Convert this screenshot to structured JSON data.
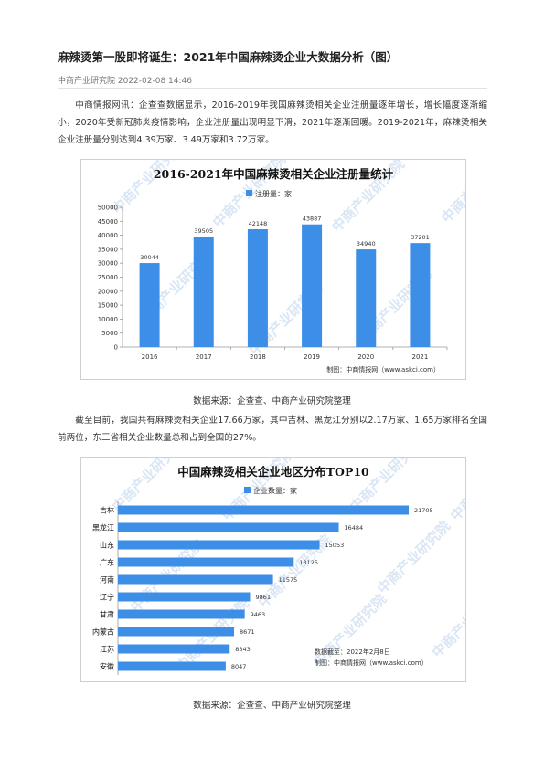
{
  "article": {
    "title": "麻辣烫第一股即将诞生：2021年中国麻辣烫企业大数据分析（图）",
    "source_line": "中商产业研究院 2022-02-08 14:46",
    "paragraph1": "中商情报网讯：企查查数据显示，2016-2019年我国麻辣烫相关企业注册量逐年增长，增长幅度逐渐缩小，2020年受新冠肺炎疫情影响，企业注册量出现明显下滑，2021年逐渐回暖。2019-2021年，麻辣烫相关企业注册量分别达到4.39万家、3.49万家和3.72万家。",
    "caption1": "数据来源：企查查、中商产业研究院整理",
    "paragraph2": "截至目前，我国共有麻辣烫相关企业17.66万家，其中吉林、黑龙江分别以2.17万家、1.65万家排名全国前两位，东三省相关企业数量总和占到全国的27%。",
    "caption2": "数据来源：企查查、中商产业研究院整理"
  },
  "watermark": "中商产业研究院",
  "chart_data": [
    {
      "type": "bar",
      "title": "2016-2021年中国麻辣烫相关企业注册量统计",
      "series": [
        {
          "name": "注册量：家",
          "values": [
            30044,
            39505,
            42148,
            43887,
            34940,
            37201
          ]
        }
      ],
      "categories": [
        "2016",
        "2017",
        "2018",
        "2019",
        "2020",
        "2021"
      ],
      "ylim": [
        0,
        50000
      ],
      "yticks": [
        0,
        5000,
        10000,
        15000,
        20000,
        25000,
        30000,
        35000,
        40000,
        45000,
        50000
      ],
      "grid": false,
      "legend": "top-center",
      "color": "#3c8ee6",
      "footer": "制图：中商情报网（www.askci.com）"
    },
    {
      "type": "bar",
      "orientation": "horizontal",
      "title": "中国麻辣烫相关企业地区分布TOP10",
      "series": [
        {
          "name": "企业数量：家",
          "values": [
            21705,
            16484,
            15053,
            13125,
            11575,
            9861,
            9463,
            8671,
            8343,
            8047
          ]
        }
      ],
      "categories": [
        "吉林",
        "黑龙江",
        "山东",
        "广东",
        "河南",
        "辽宁",
        "甘肃",
        "内蒙古",
        "江苏",
        "安徽"
      ],
      "legend": "top-center",
      "color": "#3c8ee6",
      "date_note": "数据截至：2022年2月8日",
      "footer": "制图：中商情报网（www.askci.com）"
    }
  ]
}
